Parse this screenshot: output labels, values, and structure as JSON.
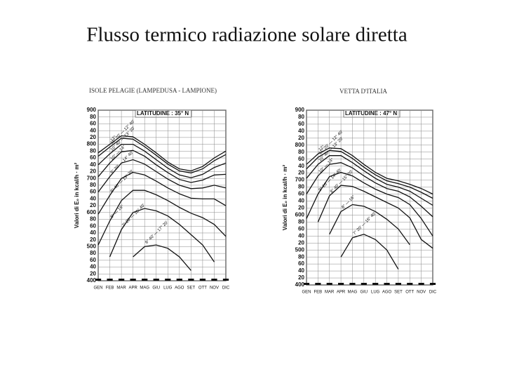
{
  "title": "Flusso termico radiazione solare diretta",
  "chart_data": [
    {
      "type": "line",
      "title": "ISOLE PELAGIE (LAMPEDUSA - LAMPIONE)",
      "subtitle": "LATITUDINE : 35° N",
      "y_label": "Valori di E₀ in kcal/h · m²",
      "categories": [
        "GEN",
        "FEB",
        "MAR",
        "APR",
        "MAG",
        "GIU",
        "LUG",
        "AGO",
        "SET",
        "OTT",
        "NOV",
        "DIC"
      ],
      "ylim": [
        400,
        900
      ],
      "yticks": [
        400,
        {
          "value": 420,
          "label": "20"
        },
        {
          "value": 440,
          "label": "40"
        },
        {
          "value": 460,
          "label": "60"
        },
        {
          "value": 480,
          "label": "80"
        },
        500,
        {
          "value": 520,
          "label": "20"
        },
        {
          "value": 540,
          "label": "40"
        },
        {
          "value": 560,
          "label": "60"
        },
        {
          "value": 580,
          "label": "80"
        },
        600,
        {
          "value": 620,
          "label": "20"
        },
        {
          "value": 640,
          "label": "40"
        },
        {
          "value": 660,
          "label": "60"
        },
        {
          "value": 680,
          "label": "80"
        },
        700,
        {
          "value": 720,
          "label": "20"
        },
        {
          "value": 740,
          "label": "40"
        },
        {
          "value": 760,
          "label": "60"
        },
        {
          "value": 780,
          "label": "80"
        },
        800,
        {
          "value": 820,
          "label": "20"
        },
        {
          "value": 840,
          "label": "40"
        },
        {
          "value": 860,
          "label": "60"
        },
        {
          "value": 880,
          "label": "80"
        },
        900
      ],
      "grid": true,
      "series": [
        {
          "name": "12°",
          "color": "#111",
          "values": [
            775,
            800,
            825,
            822,
            800,
            775,
            748,
            728,
            722,
            735,
            760,
            780
          ]
        },
        {
          "name": "11° 20' — 12° 40'",
          "color": "#111",
          "values": [
            765,
            792,
            818,
            815,
            793,
            768,
            742,
            722,
            716,
            728,
            752,
            770
          ]
        },
        {
          "name": "10° 40' — 13° 20'",
          "color": "#111",
          "values": [
            740,
            772,
            800,
            800,
            780,
            755,
            730,
            710,
            702,
            712,
            732,
            745
          ]
        },
        {
          "name": "10° — 14°",
          "color": "#111",
          "values": [
            705,
            745,
            778,
            782,
            765,
            740,
            717,
            697,
            688,
            695,
            710,
            712
          ]
        },
        {
          "name": "9° 20' — 14° 40'",
          "color": "#111",
          "values": [
            660,
            705,
            745,
            755,
            742,
            720,
            698,
            680,
            670,
            672,
            680,
            672
          ]
        },
        {
          "name": "8° 40' — 15° 20'",
          "color": "#111",
          "values": [
            595,
            650,
            700,
            718,
            710,
            692,
            672,
            655,
            642,
            640,
            640,
            620
          ]
        },
        {
          "name": "8° — 16°",
          "color": "#111",
          "values": [
            505,
            575,
            635,
            665,
            665,
            652,
            635,
            615,
            598,
            585,
            565,
            530
          ]
        },
        {
          "name": "7° 20' — 16° 40'",
          "color": "#111",
          "values": [
            null,
            470,
            550,
            600,
            612,
            605,
            590,
            565,
            535,
            505,
            455,
            null
          ]
        },
        {
          "name": "6° 40' — 17° 20'",
          "color": "#111",
          "values": [
            null,
            null,
            null,
            470,
            500,
            505,
            495,
            470,
            430,
            null,
            null,
            null
          ]
        }
      ]
    },
    {
      "type": "line",
      "title": "VETTA D'ITALIA",
      "subtitle": "LATITUDINE : 47° N",
      "y_label": "Valori di E₀ in kcal/h · m²",
      "categories": [
        "GEN",
        "FEB",
        "MAR",
        "APR",
        "MAG",
        "GIU",
        "LUG",
        "AGO",
        "SET",
        "OTT",
        "NOV",
        "DIC"
      ],
      "ylim": [
        400,
        900
      ],
      "yticks": [
        400,
        {
          "value": 420,
          "label": "20"
        },
        {
          "value": 440,
          "label": "40"
        },
        {
          "value": 460,
          "label": "60"
        },
        {
          "value": 480,
          "label": "80"
        },
        500,
        {
          "value": 520,
          "label": "20"
        },
        {
          "value": 540,
          "label": "40"
        },
        {
          "value": 560,
          "label": "60"
        },
        {
          "value": 580,
          "label": "80"
        },
        600,
        {
          "value": 620,
          "label": "20"
        },
        {
          "value": 640,
          "label": "40"
        },
        {
          "value": 660,
          "label": "60"
        },
        {
          "value": 680,
          "label": "80"
        },
        700,
        {
          "value": 720,
          "label": "20"
        },
        {
          "value": 740,
          "label": "40"
        },
        {
          "value": 760,
          "label": "60"
        },
        {
          "value": 780,
          "label": "80"
        },
        800,
        {
          "value": 820,
          "label": "20"
        },
        {
          "value": 840,
          "label": "40"
        },
        {
          "value": 860,
          "label": "60"
        },
        {
          "value": 880,
          "label": "80"
        },
        900
      ],
      "grid": true,
      "series": [
        {
          "name": "12°",
          "color": "#111",
          "values": [
            745,
            775,
            792,
            790,
            770,
            745,
            722,
            705,
            698,
            688,
            676,
            660
          ]
        },
        {
          "name": "11° 20' — 12° 40'",
          "color": "#111",
          "values": [
            732,
            765,
            785,
            782,
            762,
            737,
            715,
            698,
            690,
            680,
            665,
            648
          ]
        },
        {
          "name": "10° 40' — 13° 20'",
          "color": "#111",
          "values": [
            705,
            745,
            770,
            770,
            750,
            727,
            705,
            688,
            680,
            668,
            648,
            628
          ]
        },
        {
          "name": "10° — 14°",
          "color": "#111",
          "values": [
            660,
            712,
            745,
            750,
            735,
            712,
            692,
            676,
            668,
            652,
            625,
            595
          ]
        },
        {
          "name": "9° 20' — 14° 40'",
          "color": "#111",
          "values": [
            590,
            660,
            710,
            722,
            712,
            692,
            674,
            660,
            650,
            630,
            590,
            540
          ]
        },
        {
          "name": "8° 40' — 15° 20'",
          "color": "#111",
          "values": [
            null,
            580,
            655,
            685,
            682,
            668,
            652,
            636,
            620,
            592,
            530,
            505
          ]
        },
        {
          "name": "8° — 16°",
          "color": "#111",
          "values": [
            null,
            null,
            545,
            610,
            630,
            625,
            610,
            588,
            560,
            515,
            null,
            null
          ]
        },
        {
          "name": "7° 20' — 16° 40'",
          "color": "#111",
          "values": [
            null,
            null,
            null,
            480,
            535,
            545,
            530,
            500,
            445,
            null,
            null,
            null
          ]
        }
      ]
    }
  ]
}
